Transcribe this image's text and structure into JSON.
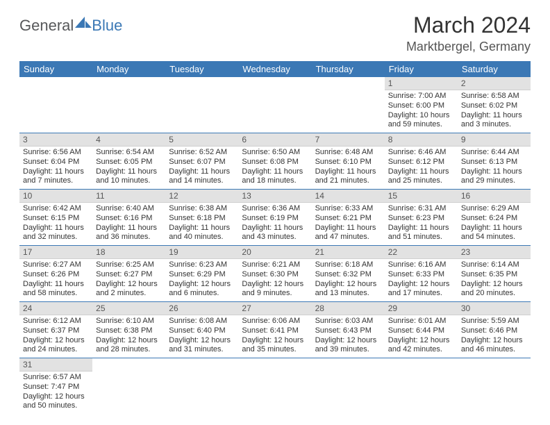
{
  "brand": {
    "part1": "General",
    "part2": "Blue"
  },
  "title": {
    "month": "March 2024",
    "location": "Marktbergel, Germany"
  },
  "colors": {
    "header_bg": "#3b78b5",
    "header_text": "#ffffff",
    "daynum_bg": "#e2e2e2",
    "cell_border": "#3b78b5"
  },
  "weekday_labels": [
    "Sunday",
    "Monday",
    "Tuesday",
    "Wednesday",
    "Thursday",
    "Friday",
    "Saturday"
  ],
  "weeks": [
    [
      null,
      null,
      null,
      null,
      null,
      {
        "n": "1",
        "sunrise": "Sunrise: 7:00 AM",
        "sunset": "Sunset: 6:00 PM",
        "daylight": "Daylight: 10 hours and 59 minutes."
      },
      {
        "n": "2",
        "sunrise": "Sunrise: 6:58 AM",
        "sunset": "Sunset: 6:02 PM",
        "daylight": "Daylight: 11 hours and 3 minutes."
      }
    ],
    [
      {
        "n": "3",
        "sunrise": "Sunrise: 6:56 AM",
        "sunset": "Sunset: 6:04 PM",
        "daylight": "Daylight: 11 hours and 7 minutes."
      },
      {
        "n": "4",
        "sunrise": "Sunrise: 6:54 AM",
        "sunset": "Sunset: 6:05 PM",
        "daylight": "Daylight: 11 hours and 10 minutes."
      },
      {
        "n": "5",
        "sunrise": "Sunrise: 6:52 AM",
        "sunset": "Sunset: 6:07 PM",
        "daylight": "Daylight: 11 hours and 14 minutes."
      },
      {
        "n": "6",
        "sunrise": "Sunrise: 6:50 AM",
        "sunset": "Sunset: 6:08 PM",
        "daylight": "Daylight: 11 hours and 18 minutes."
      },
      {
        "n": "7",
        "sunrise": "Sunrise: 6:48 AM",
        "sunset": "Sunset: 6:10 PM",
        "daylight": "Daylight: 11 hours and 21 minutes."
      },
      {
        "n": "8",
        "sunrise": "Sunrise: 6:46 AM",
        "sunset": "Sunset: 6:12 PM",
        "daylight": "Daylight: 11 hours and 25 minutes."
      },
      {
        "n": "9",
        "sunrise": "Sunrise: 6:44 AM",
        "sunset": "Sunset: 6:13 PM",
        "daylight": "Daylight: 11 hours and 29 minutes."
      }
    ],
    [
      {
        "n": "10",
        "sunrise": "Sunrise: 6:42 AM",
        "sunset": "Sunset: 6:15 PM",
        "daylight": "Daylight: 11 hours and 32 minutes."
      },
      {
        "n": "11",
        "sunrise": "Sunrise: 6:40 AM",
        "sunset": "Sunset: 6:16 PM",
        "daylight": "Daylight: 11 hours and 36 minutes."
      },
      {
        "n": "12",
        "sunrise": "Sunrise: 6:38 AM",
        "sunset": "Sunset: 6:18 PM",
        "daylight": "Daylight: 11 hours and 40 minutes."
      },
      {
        "n": "13",
        "sunrise": "Sunrise: 6:36 AM",
        "sunset": "Sunset: 6:19 PM",
        "daylight": "Daylight: 11 hours and 43 minutes."
      },
      {
        "n": "14",
        "sunrise": "Sunrise: 6:33 AM",
        "sunset": "Sunset: 6:21 PM",
        "daylight": "Daylight: 11 hours and 47 minutes."
      },
      {
        "n": "15",
        "sunrise": "Sunrise: 6:31 AM",
        "sunset": "Sunset: 6:23 PM",
        "daylight": "Daylight: 11 hours and 51 minutes."
      },
      {
        "n": "16",
        "sunrise": "Sunrise: 6:29 AM",
        "sunset": "Sunset: 6:24 PM",
        "daylight": "Daylight: 11 hours and 54 minutes."
      }
    ],
    [
      {
        "n": "17",
        "sunrise": "Sunrise: 6:27 AM",
        "sunset": "Sunset: 6:26 PM",
        "daylight": "Daylight: 11 hours and 58 minutes."
      },
      {
        "n": "18",
        "sunrise": "Sunrise: 6:25 AM",
        "sunset": "Sunset: 6:27 PM",
        "daylight": "Daylight: 12 hours and 2 minutes."
      },
      {
        "n": "19",
        "sunrise": "Sunrise: 6:23 AM",
        "sunset": "Sunset: 6:29 PM",
        "daylight": "Daylight: 12 hours and 6 minutes."
      },
      {
        "n": "20",
        "sunrise": "Sunrise: 6:21 AM",
        "sunset": "Sunset: 6:30 PM",
        "daylight": "Daylight: 12 hours and 9 minutes."
      },
      {
        "n": "21",
        "sunrise": "Sunrise: 6:18 AM",
        "sunset": "Sunset: 6:32 PM",
        "daylight": "Daylight: 12 hours and 13 minutes."
      },
      {
        "n": "22",
        "sunrise": "Sunrise: 6:16 AM",
        "sunset": "Sunset: 6:33 PM",
        "daylight": "Daylight: 12 hours and 17 minutes."
      },
      {
        "n": "23",
        "sunrise": "Sunrise: 6:14 AM",
        "sunset": "Sunset: 6:35 PM",
        "daylight": "Daylight: 12 hours and 20 minutes."
      }
    ],
    [
      {
        "n": "24",
        "sunrise": "Sunrise: 6:12 AM",
        "sunset": "Sunset: 6:37 PM",
        "daylight": "Daylight: 12 hours and 24 minutes."
      },
      {
        "n": "25",
        "sunrise": "Sunrise: 6:10 AM",
        "sunset": "Sunset: 6:38 PM",
        "daylight": "Daylight: 12 hours and 28 minutes."
      },
      {
        "n": "26",
        "sunrise": "Sunrise: 6:08 AM",
        "sunset": "Sunset: 6:40 PM",
        "daylight": "Daylight: 12 hours and 31 minutes."
      },
      {
        "n": "27",
        "sunrise": "Sunrise: 6:06 AM",
        "sunset": "Sunset: 6:41 PM",
        "daylight": "Daylight: 12 hours and 35 minutes."
      },
      {
        "n": "28",
        "sunrise": "Sunrise: 6:03 AM",
        "sunset": "Sunset: 6:43 PM",
        "daylight": "Daylight: 12 hours and 39 minutes."
      },
      {
        "n": "29",
        "sunrise": "Sunrise: 6:01 AM",
        "sunset": "Sunset: 6:44 PM",
        "daylight": "Daylight: 12 hours and 42 minutes."
      },
      {
        "n": "30",
        "sunrise": "Sunrise: 5:59 AM",
        "sunset": "Sunset: 6:46 PM",
        "daylight": "Daylight: 12 hours and 46 minutes."
      }
    ],
    [
      {
        "n": "31",
        "sunrise": "Sunrise: 6:57 AM",
        "sunset": "Sunset: 7:47 PM",
        "daylight": "Daylight: 12 hours and 50 minutes."
      },
      null,
      null,
      null,
      null,
      null,
      null
    ]
  ]
}
